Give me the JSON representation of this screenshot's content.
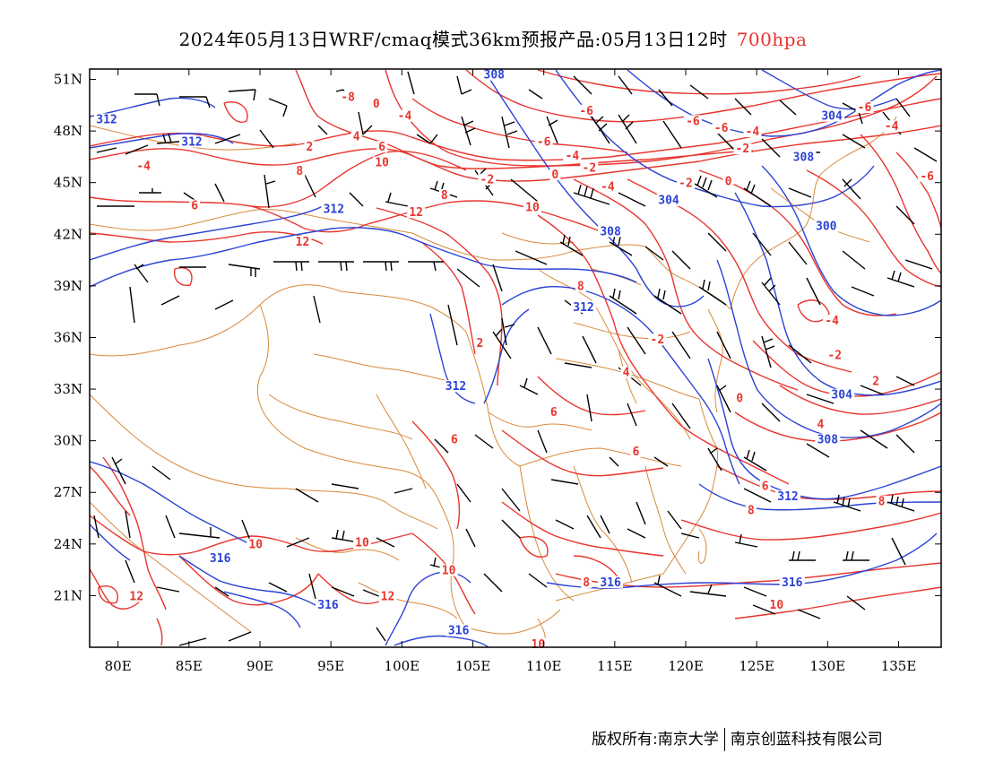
{
  "title": {
    "main": "2024年05月13日WRF/cmaq模式36km预报产品:05月13日12时",
    "level": "700hpa",
    "level_color": "#e8352e"
  },
  "axes": {
    "lon_ticks": [
      "80E",
      "85E",
      "90E",
      "95E",
      "100E",
      "105E",
      "110E",
      "115E",
      "120E",
      "125E",
      "130E",
      "135E"
    ],
    "lat_ticks": [
      "51N",
      "48N",
      "45N",
      "42N",
      "39N",
      "36N",
      "33N",
      "30N",
      "27N",
      "24N",
      "21N"
    ]
  },
  "colors": {
    "temperature_contour": "#e8352e",
    "height_contour": "#2b42d4",
    "border": "#d98a3a",
    "wind_barb": "#000000"
  },
  "temperature_labels": [
    {
      "text": "-8",
      "lon": 96.2,
      "lat": 49.8
    },
    {
      "text": "0",
      "lon": 98.2,
      "lat": 49.4
    },
    {
      "text": "-4",
      "lon": 100.2,
      "lat": 48.7
    },
    {
      "text": "-6",
      "lon": 113.0,
      "lat": 49.0
    },
    {
      "text": "-6",
      "lon": 110.0,
      "lat": 47.2
    },
    {
      "text": "-4",
      "lon": 112.0,
      "lat": 46.4
    },
    {
      "text": "-2",
      "lon": 113.2,
      "lat": 45.7
    },
    {
      "text": "0",
      "lon": 110.8,
      "lat": 45.3
    },
    {
      "text": "-2",
      "lon": 106.0,
      "lat": 45.0
    },
    {
      "text": "-4",
      "lon": 114.5,
      "lat": 44.6
    },
    {
      "text": "-2",
      "lon": 120.0,
      "lat": 44.8
    },
    {
      "text": "0",
      "lon": 123.0,
      "lat": 44.9
    },
    {
      "text": "-6",
      "lon": 120.5,
      "lat": 48.4
    },
    {
      "text": "-6",
      "lon": 122.5,
      "lat": 48.0
    },
    {
      "text": "-4",
      "lon": 124.7,
      "lat": 47.8
    },
    {
      "text": "-2",
      "lon": 124.0,
      "lat": 46.8
    },
    {
      "text": "-6",
      "lon": 132.6,
      "lat": 49.2
    },
    {
      "text": "-4",
      "lon": 134.5,
      "lat": 48.1
    },
    {
      "text": "-6",
      "lon": 137.0,
      "lat": 45.2
    },
    {
      "text": "2",
      "lon": 93.5,
      "lat": 46.9
    },
    {
      "text": "4",
      "lon": 96.8,
      "lat": 47.5
    },
    {
      "text": "6",
      "lon": 98.6,
      "lat": 46.9
    },
    {
      "text": "10",
      "lon": 98.6,
      "lat": 46.0
    },
    {
      "text": "-4",
      "lon": 81.8,
      "lat": 45.8
    },
    {
      "text": "8",
      "lon": 92.8,
      "lat": 45.5
    },
    {
      "text": "8",
      "lon": 103.0,
      "lat": 44.1
    },
    {
      "text": "6",
      "lon": 85.4,
      "lat": 43.5
    },
    {
      "text": "12",
      "lon": 101.0,
      "lat": 43.1
    },
    {
      "text": "10",
      "lon": 109.2,
      "lat": 43.4
    },
    {
      "text": "12",
      "lon": 93.0,
      "lat": 41.4
    },
    {
      "text": "8",
      "lon": 112.6,
      "lat": 38.8
    },
    {
      "text": "-4",
      "lon": 130.3,
      "lat": 36.8
    },
    {
      "text": "-2",
      "lon": 118.0,
      "lat": 35.7
    },
    {
      "text": "2",
      "lon": 105.5,
      "lat": 35.5
    },
    {
      "text": "-2",
      "lon": 130.5,
      "lat": 34.8
    },
    {
      "text": "2",
      "lon": 133.4,
      "lat": 33.3
    },
    {
      "text": "4",
      "lon": 115.8,
      "lat": 33.8
    },
    {
      "text": "0",
      "lon": 123.8,
      "lat": 32.3
    },
    {
      "text": "6",
      "lon": 110.7,
      "lat": 31.5
    },
    {
      "text": "4",
      "lon": 129.5,
      "lat": 30.8
    },
    {
      "text": "6",
      "lon": 103.7,
      "lat": 29.9
    },
    {
      "text": "6",
      "lon": 116.5,
      "lat": 29.2
    },
    {
      "text": "6",
      "lon": 125.6,
      "lat": 27.2
    },
    {
      "text": "8",
      "lon": 133.8,
      "lat": 26.3
    },
    {
      "text": "8",
      "lon": 124.6,
      "lat": 25.8
    },
    {
      "text": "10",
      "lon": 89.7,
      "lat": 23.8
    },
    {
      "text": "10",
      "lon": 97.2,
      "lat": 23.9
    },
    {
      "text": "10",
      "lon": 103.3,
      "lat": 22.3
    },
    {
      "text": "8",
      "lon": 113.0,
      "lat": 21.6
    },
    {
      "text": "12",
      "lon": 81.3,
      "lat": 20.8
    },
    {
      "text": "12",
      "lon": 99.0,
      "lat": 20.8
    },
    {
      "text": "10",
      "lon": 126.4,
      "lat": 20.3
    },
    {
      "text": "10",
      "lon": 109.6,
      "lat": 18.0
    }
  ],
  "height_labels": [
    {
      "text": "312",
      "lon": 79.2,
      "lat": 48.5
    },
    {
      "text": "312",
      "lon": 85.2,
      "lat": 47.2
    },
    {
      "text": "308",
      "lon": 106.5,
      "lat": 51.1
    },
    {
      "text": "304",
      "lon": 130.3,
      "lat": 48.7
    },
    {
      "text": "308",
      "lon": 128.3,
      "lat": 46.3
    },
    {
      "text": "304",
      "lon": 118.8,
      "lat": 43.8
    },
    {
      "text": "312",
      "lon": 95.2,
      "lat": 43.3
    },
    {
      "text": "308",
      "lon": 114.7,
      "lat": 42.0
    },
    {
      "text": "300",
      "lon": 129.9,
      "lat": 42.3
    },
    {
      "text": "312",
      "lon": 112.8,
      "lat": 37.6
    },
    {
      "text": "312",
      "lon": 103.8,
      "lat": 33.0
    },
    {
      "text": "304",
      "lon": 131.0,
      "lat": 32.5
    },
    {
      "text": "308",
      "lon": 130.0,
      "lat": 29.9
    },
    {
      "text": "312",
      "lon": 127.2,
      "lat": 26.6
    },
    {
      "text": "316",
      "lon": 87.2,
      "lat": 23.0
    },
    {
      "text": "316",
      "lon": 114.7,
      "lat": 21.6
    },
    {
      "text": "316",
      "lon": 127.5,
      "lat": 21.6
    },
    {
      "text": "316",
      "lon": 94.8,
      "lat": 20.3
    },
    {
      "text": "316",
      "lon": 104.0,
      "lat": 18.8
    }
  ],
  "credit": {
    "left": "版权所有:南京大学",
    "right": "南京创蓝科技有限公司"
  }
}
